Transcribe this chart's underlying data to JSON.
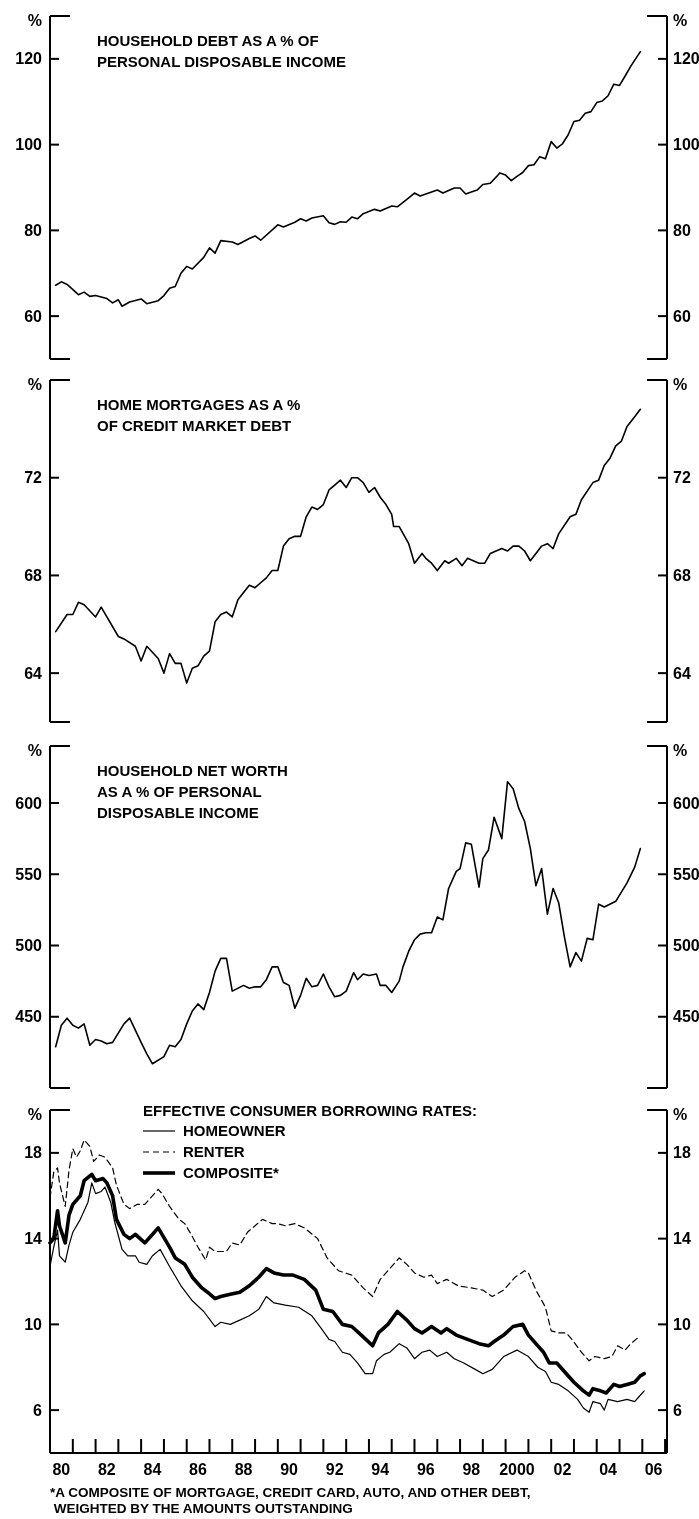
{
  "chart_data": [
    {
      "type": "line",
      "title": "HOUSEHOLD DEBT AS A % OF\nPERSONAL DISPOSABLE INCOME",
      "ylabel": "%",
      "y2label": "%",
      "color": "#000000",
      "xlim": [
        "1980-01",
        "2007-02"
      ],
      "ylim": [
        50,
        130
      ],
      "yticks": [
        60,
        80,
        100,
        120
      ],
      "y2lim": [
        50,
        130
      ],
      "y2ticks": [
        60,
        80,
        100,
        120
      ],
      "tick_labels": "y",
      "x": [
        "1980-04",
        "1980-07",
        "1980-10",
        "1981-04",
        "1981-07",
        "1981-10",
        "1982-01",
        "1982-07",
        "1982-10",
        "1983-01",
        "1983-03",
        "1983-07",
        "1984-01",
        "1984-04",
        "1984-10",
        "1985-01",
        "1985-04",
        "1985-07",
        "1985-10",
        "1986-01",
        "1986-04",
        "1986-10",
        "1987-01",
        "1987-04",
        "1987-07",
        "1988-01",
        "1988-04",
        "1988-10",
        "1989-01",
        "1989-04",
        "1990-01",
        "1990-04",
        "1990-10",
        "1991-01",
        "1991-04",
        "1991-07",
        "1992-01",
        "1992-04",
        "1992-07",
        "1992-10",
        "1993-01",
        "1993-04",
        "1993-07",
        "1993-10",
        "1994-04",
        "1994-07",
        "1995-01",
        "1995-04",
        "1995-10",
        "1996-01",
        "1996-04",
        "1997-01",
        "1997-04",
        "1997-10",
        "1998-01",
        "1998-04",
        "1998-10",
        "1999-01",
        "1999-05",
        "1999-10",
        "2000-01",
        "2000-04",
        "2000-07",
        "2000-10",
        "2001-01",
        "2001-04",
        "2001-07",
        "2001-10",
        "2002-01",
        "2002-04",
        "2002-07",
        "2002-10",
        "2003-01",
        "2003-04",
        "2003-07",
        "2003-10",
        "2004-01",
        "2004-04",
        "2004-07",
        "2004-10",
        "2005-01",
        "2005-04",
        "2005-07",
        "2005-12"
      ],
      "values": [
        67.2,
        68.0,
        67.4,
        65.0,
        65.6,
        64.6,
        64.8,
        64.1,
        63.1,
        63.8,
        62.3,
        63.3,
        64.0,
        62.9,
        63.6,
        64.8,
        66.5,
        66.9,
        70.0,
        71.6,
        71.0,
        73.7,
        75.9,
        74.7,
        77.6,
        77.3,
        76.7,
        78.1,
        78.7,
        77.7,
        81.3,
        80.8,
        81.9,
        82.7,
        82.2,
        82.9,
        83.4,
        81.8,
        81.4,
        82.0,
        81.9,
        83.1,
        82.7,
        83.9,
        84.9,
        84.5,
        85.7,
        85.5,
        87.6,
        88.7,
        88.0,
        89.4,
        88.7,
        89.9,
        89.9,
        88.5,
        89.4,
        90.7,
        91.0,
        93.4,
        92.9,
        91.6,
        92.6,
        93.5,
        95.1,
        95.3,
        97.2,
        96.7,
        100.7,
        99.2,
        100.2,
        102.3,
        105.4,
        105.7,
        107.3,
        107.7,
        109.8,
        110.2,
        111.4,
        114.1,
        113.8,
        116.0,
        118.3,
        121.7
      ]
    },
    {
      "type": "line",
      "title": "HOME MORTGAGES AS A %\nOF CREDIT MARKET DEBT",
      "ylabel": "%",
      "y2label": "%",
      "color": "#000000",
      "xlim": [
        "1980-01",
        "2007-02"
      ],
      "ylim": [
        62,
        76
      ],
      "yticks": [
        64,
        68,
        72
      ],
      "y2lim": [
        62,
        76
      ],
      "y2ticks": [
        64,
        68,
        72
      ],
      "tick_labels": "y",
      "x": [
        "1980-04",
        "1980-10",
        "1981-01",
        "1981-04",
        "1981-07",
        "1982-01",
        "1982-04",
        "1982-07",
        "1983-01",
        "1983-04",
        "1983-10",
        "1984-01",
        "1984-04",
        "1984-10",
        "1985-01",
        "1985-04",
        "1985-07",
        "1985-10",
        "1986-01",
        "1986-04",
        "1986-07",
        "1986-10",
        "1987-01",
        "1987-04",
        "1987-07",
        "1987-10",
        "1988-01",
        "1988-04",
        "1988-07",
        "1988-10",
        "1989-01",
        "1989-04",
        "1989-07",
        "1989-10",
        "1990-01",
        "1990-04",
        "1990-07",
        "1990-10",
        "1991-01",
        "1991-04",
        "1991-07",
        "1991-10",
        "1992-01",
        "1992-04",
        "1992-07",
        "1992-10",
        "1993-01",
        "1993-04",
        "1993-07",
        "1993-10",
        "1994-01",
        "1994-04",
        "1994-07",
        "1994-10",
        "1995-01",
        "1995-02",
        "1995-05",
        "1995-10",
        "1996-01",
        "1996-05",
        "1996-07",
        "1996-10",
        "1997-01",
        "1997-05",
        "1997-07",
        "1997-11",
        "1998-02",
        "1998-05",
        "1998-08",
        "1998-11",
        "1999-02",
        "1999-05",
        "1999-11",
        "2000-02",
        "2000-05",
        "2000-08",
        "2000-11",
        "2001-02",
        "2001-05",
        "2001-08",
        "2001-11",
        "2002-02",
        "2002-05",
        "2002-11",
        "2003-02",
        "2003-05",
        "2003-11",
        "2004-02",
        "2004-05",
        "2004-08",
        "2004-11",
        "2005-02",
        "2005-05",
        "2005-09",
        "2005-12"
      ],
      "values": [
        65.7,
        66.4,
        66.4,
        66.9,
        66.8,
        66.3,
        66.7,
        66.3,
        65.5,
        65.4,
        65.1,
        64.5,
        65.1,
        64.6,
        64.0,
        64.8,
        64.4,
        64.4,
        63.6,
        64.2,
        64.3,
        64.7,
        64.9,
        66.1,
        66.4,
        66.5,
        66.3,
        67.0,
        67.3,
        67.6,
        67.5,
        67.7,
        67.9,
        68.2,
        68.2,
        69.2,
        69.5,
        69.6,
        69.6,
        70.4,
        70.8,
        70.7,
        70.9,
        71.5,
        71.7,
        71.9,
        71.6,
        72.0,
        72.0,
        71.8,
        71.4,
        71.6,
        71.2,
        70.9,
        70.5,
        70.0,
        70.0,
        69.3,
        68.5,
        68.9,
        68.7,
        68.5,
        68.2,
        68.6,
        68.5,
        68.7,
        68.4,
        68.7,
        68.6,
        68.5,
        68.5,
        68.9,
        69.1,
        69.0,
        69.2,
        69.2,
        69.0,
        68.6,
        68.9,
        69.2,
        69.3,
        69.1,
        69.7,
        70.4,
        70.5,
        71.1,
        71.8,
        71.9,
        72.5,
        72.8,
        73.3,
        73.5,
        74.1,
        74.5,
        74.8
      ]
    },
    {
      "type": "line",
      "title": "HOUSEHOLD NET WORTH\nAS A % OF PERSONAL\nDISPOSABLE INCOME",
      "ylabel": "%",
      "y2label": "%",
      "color": "#000000",
      "xlim": [
        "1980-01",
        "2007-02"
      ],
      "ylim": [
        400,
        640
      ],
      "yticks": [
        450,
        500,
        550,
        600
      ],
      "y2lim": [
        400,
        640
      ],
      "y2ticks": [
        450,
        500,
        550,
        600
      ],
      "tick_labels": "y",
      "x": [
        "1980-04",
        "1980-07",
        "1980-10",
        "1981-01",
        "1981-04",
        "1981-07",
        "1981-10",
        "1982-01",
        "1982-04",
        "1982-07",
        "1982-10",
        "1983-04",
        "1983-07",
        "1984-01",
        "1984-04",
        "1984-07",
        "1985-01",
        "1985-04",
        "1985-07",
        "1985-10",
        "1986-01",
        "1986-04",
        "1986-07",
        "1986-10",
        "1987-01",
        "1987-04",
        "1987-07",
        "1987-10",
        "1988-01",
        "1988-07",
        "1988-10",
        "1989-01",
        "1989-04",
        "1989-07",
        "1989-10",
        "1990-01",
        "1990-04",
        "1990-07",
        "1990-10",
        "1991-01",
        "1991-04",
        "1991-07",
        "1991-10",
        "1992-01",
        "1992-04",
        "1992-07",
        "1992-10",
        "1993-01",
        "1993-05",
        "1993-07",
        "1993-10",
        "1994-01",
        "1994-05",
        "1994-07",
        "1994-10",
        "1995-01",
        "1995-05",
        "1995-07",
        "1995-10",
        "1996-01",
        "1996-04",
        "1996-07",
        "1996-10",
        "1997-01",
        "1997-04",
        "1997-07",
        "1997-11",
        "1998-01",
        "1998-04",
        "1998-07",
        "1998-11",
        "1999-01",
        "1999-04",
        "1999-07",
        "1999-11",
        "2000-02",
        "2000-05",
        "2000-08",
        "2000-11",
        "2001-02",
        "2001-05",
        "2001-08",
        "2001-11",
        "2002-02",
        "2002-05",
        "2002-08",
        "2002-11",
        "2003-02",
        "2003-05",
        "2003-08",
        "2003-11",
        "2004-02",
        "2004-05",
        "2004-11",
        "2005-05",
        "2005-09",
        "2005-12"
      ],
      "values": [
        429,
        444,
        449,
        444,
        442,
        445,
        430,
        434,
        433,
        431,
        432,
        445,
        449,
        432,
        424,
        417,
        422,
        430,
        429,
        434,
        445,
        454,
        459,
        455,
        467,
        482,
        491,
        491,
        468,
        472,
        470,
        471,
        471,
        476,
        485,
        485,
        474,
        472,
        456,
        465,
        477,
        471,
        472,
        480,
        471,
        464,
        465,
        468,
        481,
        476,
        480,
        479,
        480,
        472,
        472,
        467,
        475,
        485,
        496,
        504,
        508,
        509,
        509,
        520,
        518,
        540,
        552,
        554,
        572,
        571,
        541,
        561,
        567,
        590,
        575,
        615,
        610,
        596,
        587,
        568,
        542,
        554,
        522,
        540,
        530,
        506,
        485,
        495,
        489,
        505,
        504,
        529,
        527,
        531,
        544,
        555,
        568
      ]
    },
    {
      "type": "line",
      "title": "EFFECTIVE CONSUMER BORROWING RATES:",
      "ylabel": "%",
      "y2label": "%",
      "xlim": [
        "1980-01",
        "2007-02"
      ],
      "ylim": [
        4,
        20
      ],
      "yticks": [
        6,
        10,
        14,
        18
      ],
      "y2lim": [
        4,
        20
      ],
      "y2ticks": [
        6,
        10,
        14,
        18
      ],
      "legend": "top left",
      "xticks": [
        {
          "value": "1980",
          "label": null
        },
        {
          "value": "1980-07",
          "label": "80"
        },
        {
          "value": "1981",
          "label": null
        },
        {
          "value": "1982",
          "label": null
        },
        {
          "value": "1982-07",
          "label": "82"
        },
        {
          "value": "1983",
          "label": null
        },
        {
          "value": "1984",
          "label": null
        },
        {
          "value": "1984-07",
          "label": "84"
        },
        {
          "value": "1985",
          "label": null
        },
        {
          "value": "1986",
          "label": null
        },
        {
          "value": "1986-07",
          "label": "86"
        },
        {
          "value": "1987",
          "label": null
        },
        {
          "value": "1988",
          "label": null
        },
        {
          "value": "1988-07",
          "label": "88"
        },
        {
          "value": "1989",
          "label": null
        },
        {
          "value": "1990",
          "label": null
        },
        {
          "value": "1990-07",
          "label": "90"
        },
        {
          "value": "1991",
          "label": null
        },
        {
          "value": "1992",
          "label": null
        },
        {
          "value": "1992-07",
          "label": "92"
        },
        {
          "value": "1993",
          "label": null
        },
        {
          "value": "1994",
          "label": null
        },
        {
          "value": "1994-07",
          "label": "94"
        },
        {
          "value": "1995",
          "label": null
        },
        {
          "value": "1996",
          "label": null
        },
        {
          "value": "1996-07",
          "label": "96"
        },
        {
          "value": "1997",
          "label": null
        },
        {
          "value": "1998",
          "label": null
        },
        {
          "value": "1998-07",
          "label": "98"
        },
        {
          "value": "1999",
          "label": null
        },
        {
          "value": "2000",
          "label": null
        },
        {
          "value": "2000-07",
          "label": "2000"
        },
        {
          "value": "2001",
          "label": null
        },
        {
          "value": "2002",
          "label": null
        },
        {
          "value": "2002-07",
          "label": "02"
        },
        {
          "value": "2003",
          "label": null
        },
        {
          "value": "2004",
          "label": null
        },
        {
          "value": "2004-07",
          "label": "04"
        },
        {
          "value": "2005",
          "label": null
        },
        {
          "value": "2006",
          "label": null
        },
        {
          "value": "2006-07",
          "label": "06"
        },
        {
          "value": "2007",
          "label": null
        }
      ],
      "annotations": [
        "*A COMPOSITE OF MORTGAGE, CREDIT CARD, AUTO, AND OTHER DEBT,",
        " WEIGHTED BY THE AMOUNTS OUTSTANDING"
      ],
      "series": [
        {
          "name": "HOMEOWNER",
          "color": "#000000",
          "line_style": "solid",
          "x": [
            "1980-01",
            "1980-03",
            "1980-05",
            "1980-06",
            "1980-09",
            "1980-11",
            "1981-01",
            "1981-05",
            "1981-09",
            "1981-11",
            "1982-01",
            "1982-04",
            "1982-06",
            "1982-09",
            "1982-11",
            "1983-03",
            "1983-06",
            "1983-10",
            "1983-12",
            "1984-04",
            "1984-07",
            "1984-11",
            "1985-04",
            "1985-10",
            "1986-04",
            "1986-10",
            "1987-04",
            "1987-07",
            "1987-12",
            "1988-05",
            "1988-10",
            "1989-03",
            "1989-07",
            "1989-11",
            "1990-05",
            "1990-12",
            "1991-07",
            "1991-12",
            "1992-04",
            "1992-07",
            "1992-11",
            "1993-03",
            "1993-07",
            "1993-11",
            "1994-03",
            "1994-05",
            "1994-09",
            "1994-12",
            "1995-05",
            "1995-09",
            "1996-01",
            "1996-05",
            "1996-09",
            "1997-01",
            "1997-06",
            "1997-10",
            "1998-03",
            "1998-09",
            "1999-01",
            "1999-06",
            "1999-12",
            "2000-07",
            "2001-01",
            "2001-06",
            "2001-10",
            "2002-01",
            "2002-05",
            "2002-10",
            "2003-03",
            "2003-06",
            "2003-09",
            "2003-11",
            "2004-03",
            "2004-05",
            "2004-07",
            "2004-12",
            "2005-05",
            "2005-09",
            "2005-11",
            "2006-02"
          ],
          "values": [
            12.7,
            13.6,
            14.4,
            13.2,
            12.9,
            13.7,
            14.3,
            14.9,
            15.7,
            16.6,
            16.1,
            16.2,
            16.4,
            15.7,
            14.8,
            13.5,
            13.2,
            13.2,
            12.9,
            12.8,
            13.2,
            13.5,
            12.7,
            11.8,
            11.1,
            10.6,
            9.9,
            10.1,
            10.0,
            10.2,
            10.4,
            10.7,
            11.3,
            11.0,
            10.9,
            10.8,
            10.4,
            9.8,
            9.3,
            9.2,
            8.7,
            8.6,
            8.2,
            7.7,
            7.7,
            8.3,
            8.6,
            8.7,
            9.1,
            8.9,
            8.4,
            8.7,
            8.8,
            8.5,
            8.7,
            8.4,
            8.2,
            7.9,
            7.7,
            7.9,
            8.5,
            8.8,
            8.5,
            8.0,
            7.8,
            7.3,
            7.2,
            6.9,
            6.5,
            6.1,
            5.9,
            6.4,
            6.3,
            6.0,
            6.5,
            6.4,
            6.5,
            6.4,
            6.6,
            6.9
          ]
        },
        {
          "name": "RENTER",
          "color": "#000000",
          "line_style": "dashed",
          "x": [
            "1980-01",
            "1980-03",
            "1980-05",
            "1980-06",
            "1980-09",
            "1980-11",
            "1981-01",
            "1981-03",
            "1981-05",
            "1981-07",
            "1981-10",
            "1981-12",
            "1982-03",
            "1982-06",
            "1982-10",
            "1982-12",
            "1983-04",
            "1983-07",
            "1983-11",
            "1984-03",
            "1984-06",
            "1984-10",
            "1984-12",
            "1985-04",
            "1985-09",
            "1985-12",
            "1986-04",
            "1986-07",
            "1986-11",
            "1987-01",
            "1987-04",
            "1987-10",
            "1988-01",
            "1988-05",
            "1988-09",
            "1989-01",
            "1989-05",
            "1989-10",
            "1990-01",
            "1990-05",
            "1990-10",
            "1991-03",
            "1991-10",
            "1992-03",
            "1992-09",
            "1993-04",
            "1993-10",
            "1994-03",
            "1994-07",
            "1994-12",
            "1995-05",
            "1995-09",
            "1996-01",
            "1996-06",
            "1996-10",
            "1997-01",
            "1997-06",
            "1997-12",
            "1998-07",
            "1999-01",
            "1999-06",
            "1999-12",
            "2000-06",
            "2000-11",
            "2001-01",
            "2001-05",
            "2001-10",
            "2002-01",
            "2002-05",
            "2002-09",
            "2002-12",
            "2003-05",
            "2003-09",
            "2003-12",
            "2004-05",
            "2004-09",
            "2004-12",
            "2005-04",
            "2005-07",
            "2005-11"
          ],
          "values": [
            15.9,
            17.1,
            17.3,
            16.6,
            15.5,
            17.2,
            18.2,
            17.8,
            18.1,
            18.6,
            18.3,
            17.6,
            17.9,
            17.8,
            17.3,
            16.5,
            15.6,
            15.4,
            15.6,
            15.6,
            15.9,
            16.3,
            16.1,
            15.5,
            14.9,
            14.7,
            14.1,
            13.6,
            13.0,
            13.6,
            13.4,
            13.4,
            13.8,
            13.7,
            14.3,
            14.6,
            14.9,
            14.7,
            14.7,
            14.6,
            14.7,
            14.5,
            14.0,
            13.1,
            12.5,
            12.3,
            11.7,
            11.3,
            12.1,
            12.6,
            13.1,
            12.8,
            12.4,
            12.2,
            12.3,
            11.9,
            12.1,
            11.8,
            11.7,
            11.6,
            11.3,
            11.6,
            12.2,
            12.5,
            12.4,
            11.6,
            10.8,
            9.7,
            9.6,
            9.6,
            9.3,
            8.7,
            8.3,
            8.5,
            8.4,
            8.5,
            9.0,
            8.8,
            9.1,
            9.4
          ]
        },
        {
          "name": "COMPOSITE*",
          "color": "#000000",
          "line_style": "solid",
          "x": [
            "1980-01",
            "1980-03",
            "1980-05",
            "1980-06",
            "1980-09",
            "1980-11",
            "1981-01",
            "1981-05",
            "1981-07",
            "1981-11",
            "1982-01",
            "1982-05",
            "1982-07",
            "1982-10",
            "1982-12",
            "1983-04",
            "1983-07",
            "1983-10",
            "1984-03",
            "1984-06",
            "1984-10",
            "1984-12",
            "1985-04",
            "1985-07",
            "1985-12",
            "1986-04",
            "1986-09",
            "1986-12",
            "1987-04",
            "1987-07",
            "1987-12",
            "1988-05",
            "1988-10",
            "1989-03",
            "1989-07",
            "1989-11",
            "1990-04",
            "1990-09",
            "1991-03",
            "1991-09",
            "1992-01",
            "1992-06",
            "1992-11",
            "1993-04",
            "1993-09",
            "1994-03",
            "1994-06",
            "1994-11",
            "1995-04",
            "1995-09",
            "1996-01",
            "1996-05",
            "1996-10",
            "1997-03",
            "1997-06",
            "1997-11",
            "1998-05",
            "1998-11",
            "1999-04",
            "1999-07",
            "1999-12",
            "2000-05",
            "2000-10",
            "2001-01",
            "2001-05",
            "2001-09",
            "2001-12",
            "2002-04",
            "2002-09",
            "2003-01",
            "2003-06",
            "2003-09",
            "2003-11",
            "2004-03",
            "2004-06",
            "2004-10",
            "2005-01",
            "2005-05",
            "2005-09",
            "2005-12",
            "2006-02"
          ],
          "values": [
            13.8,
            14.0,
            15.3,
            14.6,
            13.8,
            15.1,
            15.6,
            16.0,
            16.7,
            17.0,
            16.7,
            16.8,
            16.6,
            16.0,
            14.9,
            14.2,
            14.0,
            14.2,
            13.8,
            14.1,
            14.5,
            14.2,
            13.6,
            13.1,
            12.8,
            12.2,
            11.7,
            11.5,
            11.2,
            11.3,
            11.4,
            11.5,
            11.8,
            12.2,
            12.6,
            12.4,
            12.3,
            12.3,
            12.1,
            11.6,
            10.7,
            10.6,
            10.0,
            9.9,
            9.5,
            9.0,
            9.6,
            10.0,
            10.6,
            10.2,
            9.8,
            9.6,
            9.9,
            9.6,
            9.8,
            9.5,
            9.3,
            9.1,
            9.0,
            9.2,
            9.5,
            9.9,
            10.0,
            9.5,
            9.1,
            8.7,
            8.2,
            8.2,
            7.7,
            7.3,
            6.9,
            6.7,
            7.0,
            6.9,
            6.8,
            7.2,
            7.1,
            7.2,
            7.3,
            7.6,
            7.7
          ]
        }
      ]
    }
  ]
}
